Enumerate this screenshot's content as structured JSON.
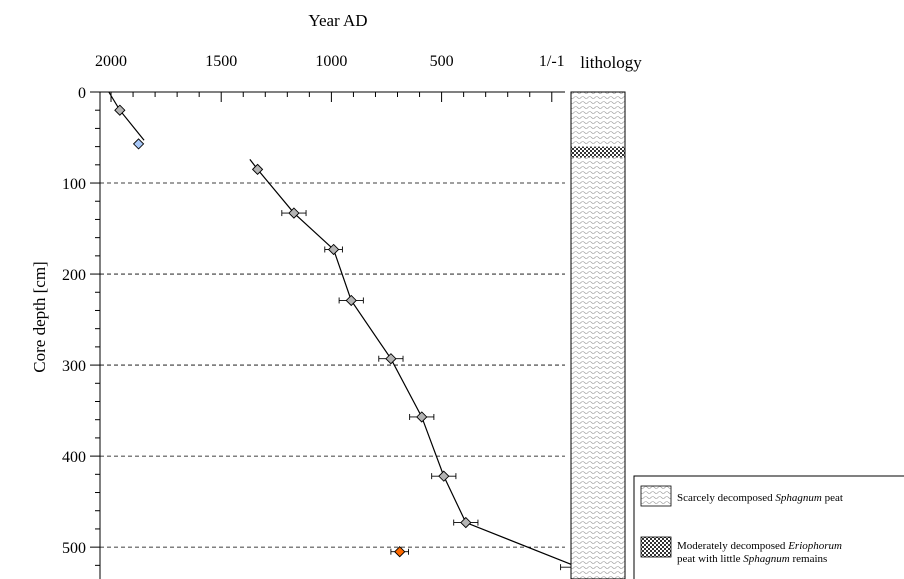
{
  "chart_data": {
    "type": "scatter",
    "title": "",
    "xlabel": "Year AD",
    "ylabel": "Core depth [cm]",
    "xlim": [
      2050,
      -60
    ],
    "ylim": [
      0,
      535
    ],
    "x_ticks": [
      {
        "value": 2000,
        "label": "2000"
      },
      {
        "value": 1500,
        "label": "1500"
      },
      {
        "value": 1000,
        "label": "1000"
      },
      {
        "value": 500,
        "label": "500"
      },
      {
        "value": 0,
        "label": "1/-1"
      }
    ],
    "y_ticks": [
      {
        "value": 0,
        "label": "0"
      },
      {
        "value": 100,
        "label": "100"
      },
      {
        "value": 200,
        "label": "200"
      },
      {
        "value": 300,
        "label": "300"
      },
      {
        "value": 400,
        "label": "400"
      },
      {
        "value": 500,
        "label": "500"
      }
    ],
    "grid": "dashed horizontal lines at every 100 cm",
    "age_depth_line": [
      {
        "year": 2010,
        "depth": 0
      },
      {
        "year": 1960,
        "depth": 20
      },
      {
        "year": 1850,
        "depth": 53
      },
      {
        "year": 1370,
        "depth": 74
      },
      {
        "year": 1335,
        "depth": 85
      },
      {
        "year": 1170,
        "depth": 133
      },
      {
        "year": 990,
        "depth": 173
      },
      {
        "year": 910,
        "depth": 229
      },
      {
        "year": 730,
        "depth": 293
      },
      {
        "year": 590,
        "depth": 357
      },
      {
        "year": 490,
        "depth": 422
      },
      {
        "year": 390,
        "depth": 473
      },
      {
        "year": -120,
        "depth": 522
      }
    ],
    "series": [
      {
        "color": "#b4b4b4",
        "points": [
          {
            "year": 1960,
            "depth": 20,
            "err": 0
          },
          {
            "year": 1335,
            "depth": 85,
            "err": 0
          },
          {
            "year": 1170,
            "depth": 133,
            "err": 55
          },
          {
            "year": 990,
            "depth": 173,
            "err": 40
          },
          {
            "year": 910,
            "depth": 229,
            "err": 55
          },
          {
            "year": 730,
            "depth": 293,
            "err": 55
          },
          {
            "year": 590,
            "depth": 357,
            "err": 55
          },
          {
            "year": 490,
            "depth": 422,
            "err": 55
          },
          {
            "year": 390,
            "depth": 473,
            "err": 55
          }
        ]
      },
      {
        "color": "#a8c8f8",
        "points": [
          {
            "year": 1875,
            "depth": 57,
            "err": 0
          }
        ]
      },
      {
        "color": "#ff6a00",
        "points": [
          {
            "year": 690,
            "depth": 505,
            "err": 40
          }
        ]
      },
      {
        "color": "#7a7a20",
        "points": [
          {
            "year": -120,
            "depth": 522,
            "err": 80
          }
        ]
      }
    ]
  },
  "lithology": {
    "header": "lithology",
    "layers": [
      {
        "from": 0,
        "to": 60,
        "pattern": "wavy"
      },
      {
        "from": 60,
        "to": 72,
        "pattern": "checker"
      },
      {
        "from": 72,
        "to": 535,
        "pattern": "wavy"
      }
    ]
  },
  "legend": {
    "items": [
      {
        "pattern": "wavy",
        "prefix": "Scarcely decomposed ",
        "italic": "Sphagnum",
        "suffix": " peat",
        "line2": ""
      },
      {
        "pattern": "checker",
        "prefix": "Moderately decomposed ",
        "italic": "Eriophorum",
        "suffix": "",
        "line2_prefix": "peat with little ",
        "line2_italic": "Sphagnum",
        "line2_suffix": " remains"
      }
    ]
  }
}
